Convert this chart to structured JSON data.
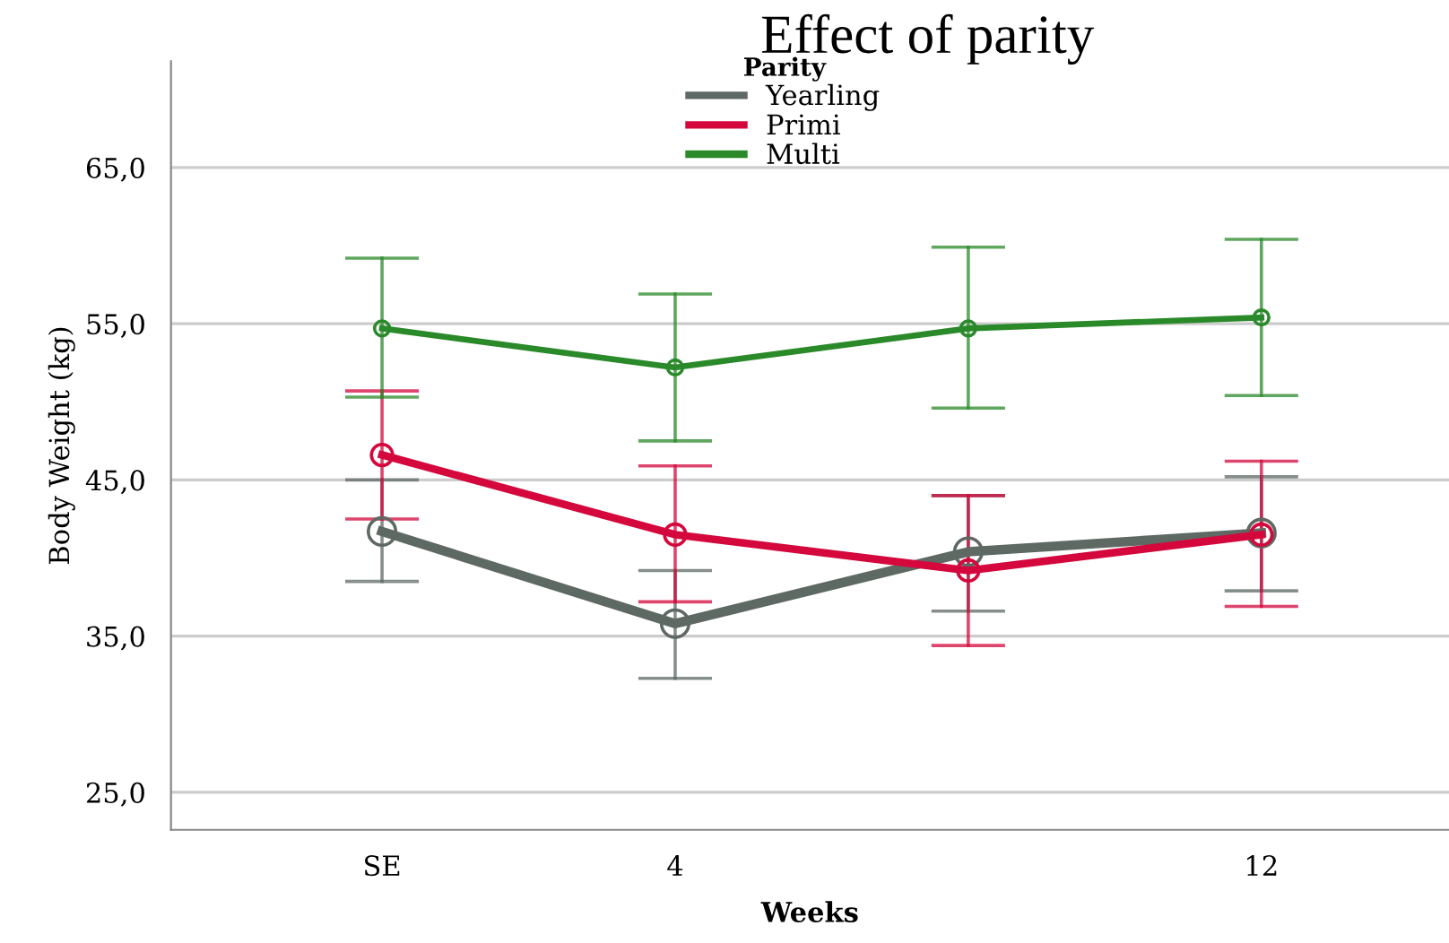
{
  "chart_data": {
    "type": "line",
    "title": "Effect of parity",
    "xlabel": "Weeks",
    "ylabel": "Body Weight (kg)",
    "legend_title": "Parity",
    "categories": [
      "SE",
      "4",
      null,
      "12"
    ],
    "series": [
      {
        "name": "Yearling",
        "color": "#5f6964",
        "values": [
          41.7,
          35.8,
          40.4,
          41.6
        ],
        "errors": [
          [
            38.5,
            45.0
          ],
          [
            32.3,
            39.2
          ],
          [
            36.6,
            44.0
          ],
          [
            37.9,
            45.2
          ]
        ]
      },
      {
        "name": "Primi",
        "color": "#d4083c",
        "values": [
          46.6,
          41.5,
          39.2,
          41.5
        ],
        "errors": [
          [
            42.5,
            50.7
          ],
          [
            37.2,
            45.9
          ],
          [
            34.4,
            44.0
          ],
          [
            36.9,
            46.2
          ]
        ]
      },
      {
        "name": "Multi",
        "color": "#2a8a2a",
        "values": [
          54.7,
          52.2,
          54.7,
          55.4
        ],
        "errors": [
          [
            50.3,
            59.2
          ],
          [
            47.5,
            56.9
          ],
          [
            49.6,
            59.9
          ],
          [
            50.4,
            60.4
          ]
        ]
      }
    ],
    "ylim": [
      22.6,
      71.8
    ],
    "yticks": [
      {
        "value": 25,
        "label": "25,0"
      },
      {
        "value": 35,
        "label": "35,0"
      },
      {
        "value": 45,
        "label": "45,0"
      },
      {
        "value": 55,
        "label": "55,0"
      },
      {
        "value": 65,
        "label": "65,0"
      }
    ],
    "grid": "y",
    "legend": "top",
    "marker": "circle",
    "line_style": "solid"
  }
}
